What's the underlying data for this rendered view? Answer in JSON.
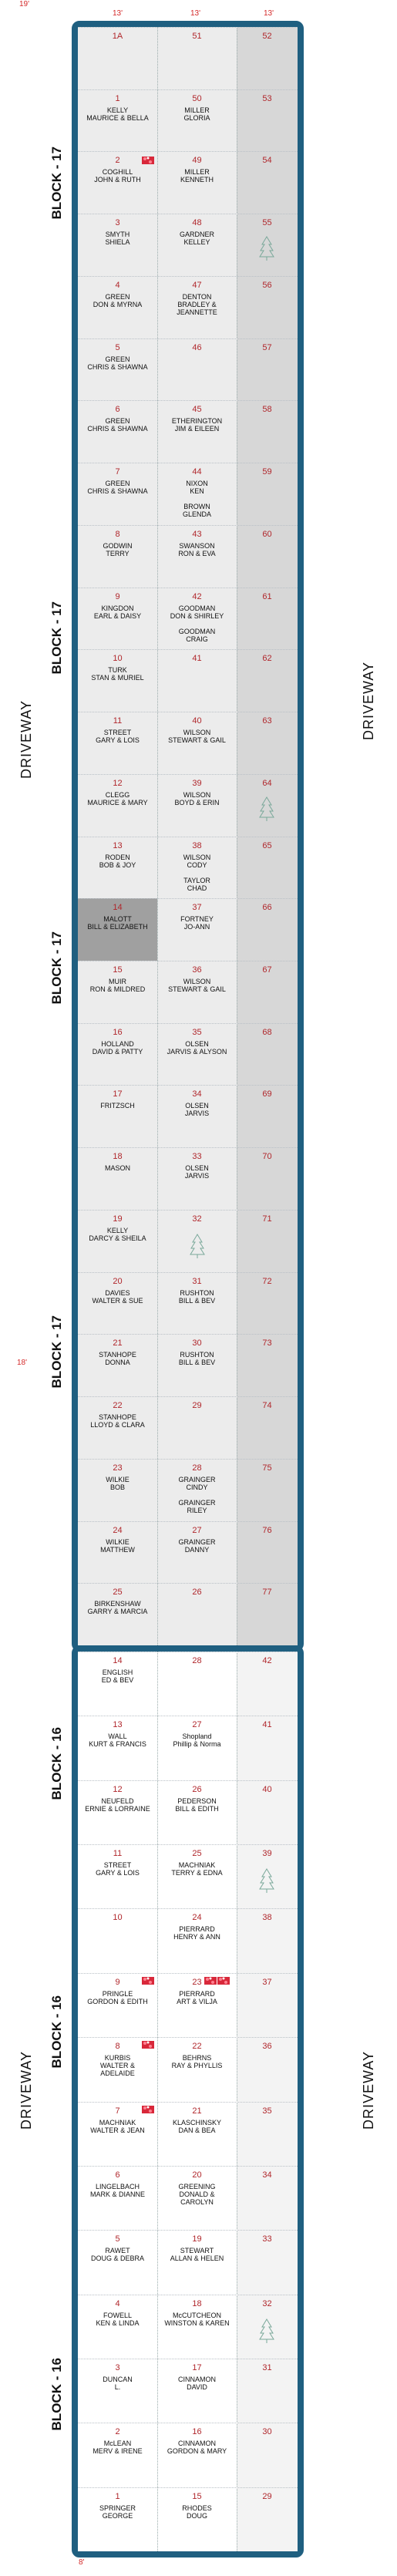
{
  "dimensions": {
    "top_left": "19'",
    "top_col_1": "13'",
    "top_col_2": "13'",
    "top_col_3": "13'",
    "mid_left": "18'",
    "bottom": "8'"
  },
  "left_driveway": [
    "DRIVEWAY",
    "DRIVEWAY"
  ],
  "right_driveway": [
    "DRIVEWAY",
    "DRIVEWAY"
  ],
  "block_labels": [
    "BLOCK - 17",
    "BLOCK - 17",
    "BLOCK - 17",
    "BLOCK - 17",
    "BLOCK - 16",
    "BLOCK - 16",
    "BLOCK - 16"
  ],
  "upper_section": {
    "rows": [
      {
        "a": {
          "num": "1A",
          "name": ""
        },
        "b": {
          "num": "51",
          "name": ""
        },
        "c": {
          "num": "52"
        }
      },
      {
        "a": {
          "num": "1",
          "name": "KELLY\nMAURICE & BELLA"
        },
        "b": {
          "num": "50",
          "name": "MILLER\nGLORIA"
        },
        "c": {
          "num": "53"
        }
      },
      {
        "a": {
          "num": "2",
          "name": "COGHILL\nJOHN & RUTH"
        },
        "b": {
          "num": "49",
          "name": "MILLER\nKENNETH"
        },
        "c": {
          "num": "54"
        }
      },
      {
        "a": {
          "num": "3",
          "name": "SMYTH\nSHIELA"
        },
        "b": {
          "num": "48",
          "name": "GARDNER\nKELLEY"
        },
        "c": {
          "num": "55"
        }
      },
      {
        "a": {
          "num": "4",
          "name": "GREEN\nDON & MYRNA"
        },
        "b": {
          "num": "47",
          "name": "DENTON\nBRADLEY &\nJEANNETTE"
        },
        "c": {
          "num": "56"
        }
      },
      {
        "a": {
          "num": "5",
          "name": "GREEN\nCHRIS & SHAWNA"
        },
        "b": {
          "num": "46",
          "name": ""
        },
        "c": {
          "num": "57"
        }
      },
      {
        "a": {
          "num": "6",
          "name": "GREEN\nCHRIS & SHAWNA"
        },
        "b": {
          "num": "45",
          "name": "ETHERINGTON\nJIM & EILEEN"
        },
        "c": {
          "num": "58"
        }
      },
      {
        "a": {
          "num": "7",
          "name": "GREEN\nCHRIS & SHAWNA"
        },
        "b": {
          "num": "44",
          "name": "NIXON\nKEN\n\nBROWN\nGLENDA"
        },
        "c": {
          "num": "59"
        }
      },
      {
        "a": {
          "num": "8",
          "name": "GODWIN\nTERRY"
        },
        "b": {
          "num": "43",
          "name": "SWANSON\nRON & EVA"
        },
        "c": {
          "num": "60"
        }
      },
      {
        "a": {
          "num": "9",
          "name": "KINGDON\nEARL & DAISY"
        },
        "b": {
          "num": "42",
          "name": "GOODMAN\nDON & SHIRLEY\n\nGOODMAN\nCRAIG"
        },
        "c": {
          "num": "61"
        }
      },
      {
        "a": {
          "num": "10",
          "name": "TURK\nSTAN & MURIEL"
        },
        "b": {
          "num": "41",
          "name": ""
        },
        "c": {
          "num": "62"
        }
      },
      {
        "a": {
          "num": "11",
          "name": "STREET\nGARY & LOIS"
        },
        "b": {
          "num": "40",
          "name": "WILSON\nSTEWART & GAIL"
        },
        "c": {
          "num": "63"
        }
      },
      {
        "a": {
          "num": "12",
          "name": "CLEGG\nMAURICE & MARY"
        },
        "b": {
          "num": "39",
          "name": "WILSON\nBOYD & ERIN"
        },
        "c": {
          "num": "64"
        }
      },
      {
        "a": {
          "num": "13",
          "name": "RODEN\nBOB & JOY"
        },
        "b": {
          "num": "38",
          "name": "WILSON\nCODY\n\nTAYLOR\nCHAD"
        },
        "c": {
          "num": "65"
        }
      },
      {
        "a": {
          "num": "14",
          "name": "MALOTT\nBILL & ELIZABETH"
        },
        "b": {
          "num": "37",
          "name": "FORTNEY\nJO-ANN"
        },
        "c": {
          "num": "66"
        }
      },
      {
        "a": {
          "num": "15",
          "name": "MUIR\nRON & MILDRED"
        },
        "b": {
          "num": "36",
          "name": "WILSON\nSTEWART & GAIL"
        },
        "c": {
          "num": "67"
        }
      },
      {
        "a": {
          "num": "16",
          "name": "HOLLAND\nDAVID & PATTY"
        },
        "b": {
          "num": "35",
          "name": "OLSEN\nJARVIS & ALYSON"
        },
        "c": {
          "num": "68"
        }
      },
      {
        "a": {
          "num": "17",
          "name": "FRITZSCH"
        },
        "b": {
          "num": "34",
          "name": "OLSEN\nJARVIS"
        },
        "c": {
          "num": "69"
        }
      },
      {
        "a": {
          "num": "18",
          "name": "MASON"
        },
        "b": {
          "num": "33",
          "name": "OLSEN\nJARVIS"
        },
        "c": {
          "num": "70"
        }
      },
      {
        "a": {
          "num": "19",
          "name": "KELLY\nDARCY & SHEILA"
        },
        "b": {
          "num": "32",
          "name": ""
        },
        "c": {
          "num": "71"
        }
      },
      {
        "a": {
          "num": "20",
          "name": "DAVIES\nWALTER & SUE"
        },
        "b": {
          "num": "31",
          "name": "RUSHTON\nBILL & BEV"
        },
        "c": {
          "num": "72"
        }
      },
      {
        "a": {
          "num": "21",
          "name": "STANHOPE\nDONNA"
        },
        "b": {
          "num": "30",
          "name": "RUSHTON\nBILL & BEV"
        },
        "c": {
          "num": "73"
        }
      },
      {
        "a": {
          "num": "22",
          "name": "STANHOPE\nLLOYD & CLARA"
        },
        "b": {
          "num": "29",
          "name": ""
        },
        "c": {
          "num": "74"
        }
      },
      {
        "a": {
          "num": "23",
          "name": "WILKIE\nBOB"
        },
        "b": {
          "num": "28",
          "name": "GRAINGER\nCINDY\n\nGRAINGER\nRILEY"
        },
        "c": {
          "num": "75"
        }
      },
      {
        "a": {
          "num": "24",
          "name": "WILKIE\nMATTHEW"
        },
        "b": {
          "num": "27",
          "name": "GRAINGER\nDANNY"
        },
        "c": {
          "num": "76"
        }
      },
      {
        "a": {
          "num": "25",
          "name": "BIRKENSHAW\nGARRY & MARCIA"
        },
        "b": {
          "num": "26",
          "name": ""
        },
        "c": {
          "num": "77"
        }
      }
    ]
  },
  "lower_section": {
    "rows": [
      {
        "a": {
          "num": "14",
          "name": "ENGLISH\nED & BEV"
        },
        "b": {
          "num": "28",
          "name": ""
        },
        "c": {
          "num": "42"
        }
      },
      {
        "a": {
          "num": "13",
          "name": "WALL\nKURT & FRANCIS"
        },
        "b": {
          "num": "27",
          "name": "Shopland\nPhillip & Norma"
        },
        "c": {
          "num": "41"
        }
      },
      {
        "a": {
          "num": "12",
          "name": "NEUFELD\nERNIE & LORRAINE"
        },
        "b": {
          "num": "26",
          "name": "PEDERSON\nBILL & EDITH"
        },
        "c": {
          "num": "40"
        }
      },
      {
        "a": {
          "num": "11",
          "name": "STREET\nGARY & LOIS"
        },
        "b": {
          "num": "25",
          "name": "MACHNIAK\nTERRY & EDNA"
        },
        "c": {
          "num": "39"
        }
      },
      {
        "a": {
          "num": "10",
          "name": ""
        },
        "b": {
          "num": "24",
          "name": "PIERRARD\nHENRY & ANN"
        },
        "c": {
          "num": "38"
        }
      },
      {
        "a": {
          "num": "9",
          "name": "PRINGLE\nGORDON & EDITH"
        },
        "b": {
          "num": "23",
          "name": "PIERRARD\nART & VILJA"
        },
        "c": {
          "num": "37"
        }
      },
      {
        "a": {
          "num": "8",
          "name": "KURBIS\nWALTER &\nADELAIDE"
        },
        "b": {
          "num": "22",
          "name": "BEHRNS\nRAY & PHYLLIS"
        },
        "c": {
          "num": "36"
        }
      },
      {
        "a": {
          "num": "7",
          "name": "MACHNIAK\nWALTER & JEAN"
        },
        "b": {
          "num": "21",
          "name": "KLASCHINSKY\nDAN & BEA"
        },
        "c": {
          "num": "35"
        }
      },
      {
        "a": {
          "num": "6",
          "name": "LINGELBACH\nMARK & DIANNE"
        },
        "b": {
          "num": "20",
          "name": "GREENING\nDONALD &\nCAROLYN"
        },
        "c": {
          "num": "34"
        }
      },
      {
        "a": {
          "num": "5",
          "name": "RAWET\nDOUG & DEBRA"
        },
        "b": {
          "num": "19",
          "name": "STEWART\nALLAN & HELEN"
        },
        "c": {
          "num": "33"
        }
      },
      {
        "a": {
          "num": "4",
          "name": "FOWELL\nKEN & LINDA"
        },
        "b": {
          "num": "18",
          "name": "McCUTCHEON\nWINSTON & KAREN"
        },
        "c": {
          "num": "32"
        }
      },
      {
        "a": {
          "num": "3",
          "name": "DUNCAN\nL."
        },
        "b": {
          "num": "17",
          "name": "CINNAMON\nDAVID"
        },
        "c": {
          "num": "31"
        }
      },
      {
        "a": {
          "num": "2",
          "name": "McLEAN\nMERV & IRENE"
        },
        "b": {
          "num": "16",
          "name": "CINNAMON\nGORDON & MARY"
        },
        "c": {
          "num": "30"
        }
      },
      {
        "a": {
          "num": "1",
          "name": "SPRINGER\nGEORGE"
        },
        "b": {
          "num": "15",
          "name": "RHODES\nDOUG"
        },
        "c": {
          "num": "29"
        }
      }
    ]
  }
}
